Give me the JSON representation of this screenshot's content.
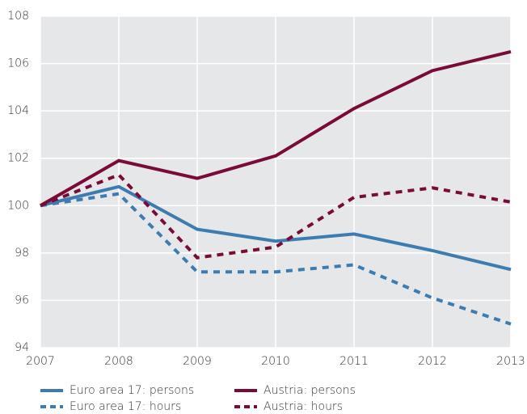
{
  "chart_data": {
    "type": "line",
    "x": [
      2007,
      2008,
      2009,
      2010,
      2011,
      2012,
      2013
    ],
    "xlim": [
      2007,
      2013
    ],
    "xticks": [
      2007,
      2008,
      2009,
      2010,
      2011,
      2012,
      2013
    ],
    "ylim": [
      94,
      108
    ],
    "yticks": [
      94,
      96,
      98,
      100,
      102,
      104,
      106,
      108
    ],
    "grid": true,
    "series": [
      {
        "name": "Euro area 17: persons",
        "color": "#3d7cb0",
        "line_style": "solid",
        "values": [
          100,
          100.8,
          99.0,
          98.5,
          98.8,
          98.1,
          97.3
        ]
      },
      {
        "name": "Austria: persons",
        "color": "#7a0a38",
        "line_style": "solid",
        "values": [
          100,
          101.9,
          101.15,
          102.1,
          104.1,
          105.7,
          106.5
        ]
      },
      {
        "name": "Euro area 17: hours",
        "color": "#3d7cb0",
        "line_style": "dashed",
        "values": [
          100,
          100.5,
          97.2,
          97.2,
          97.5,
          96.1,
          95.0
        ]
      },
      {
        "name": "Austria: hours",
        "color": "#7a0a38",
        "line_style": "dashed",
        "values": [
          100,
          101.3,
          97.8,
          98.25,
          100.35,
          100.75,
          100.15
        ]
      }
    ]
  }
}
